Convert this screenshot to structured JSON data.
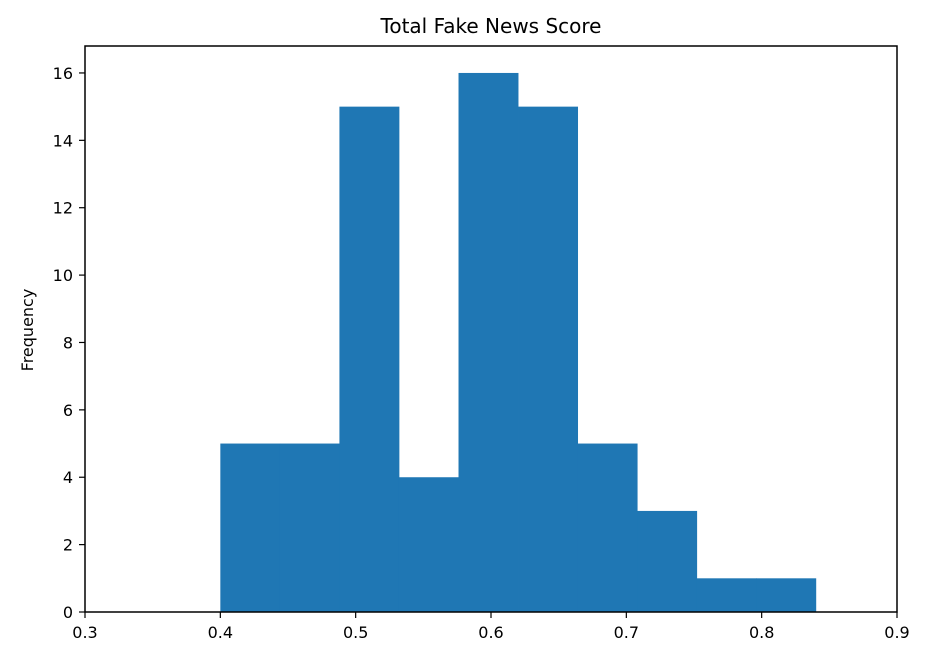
{
  "chart_data": {
    "type": "bar",
    "title": "Total Fake News Score",
    "xlabel": "",
    "ylabel": "Frequency",
    "bins": [
      {
        "start": 0.4,
        "end": 0.444,
        "value": 5
      },
      {
        "start": 0.444,
        "end": 0.488,
        "value": 5
      },
      {
        "start": 0.488,
        "end": 0.532,
        "value": 15
      },
      {
        "start": 0.532,
        "end": 0.576,
        "value": 4
      },
      {
        "start": 0.576,
        "end": 0.62,
        "value": 16
      },
      {
        "start": 0.62,
        "end": 0.664,
        "value": 15
      },
      {
        "start": 0.664,
        "end": 0.708,
        "value": 5
      },
      {
        "start": 0.708,
        "end": 0.752,
        "value": 3
      },
      {
        "start": 0.752,
        "end": 0.796,
        "value": 1
      },
      {
        "start": 0.796,
        "end": 0.84,
        "value": 1
      }
    ],
    "xlim": [
      0.3,
      0.9
    ],
    "ylim": [
      0,
      16.8
    ],
    "xticks": [
      "0.3",
      "0.4",
      "0.5",
      "0.6",
      "0.7",
      "0.8",
      "0.9"
    ],
    "yticks": [
      "0",
      "2",
      "4",
      "6",
      "8",
      "10",
      "12",
      "14",
      "16"
    ],
    "bar_color": "#1f77b4",
    "grid": false,
    "legend": "none"
  }
}
